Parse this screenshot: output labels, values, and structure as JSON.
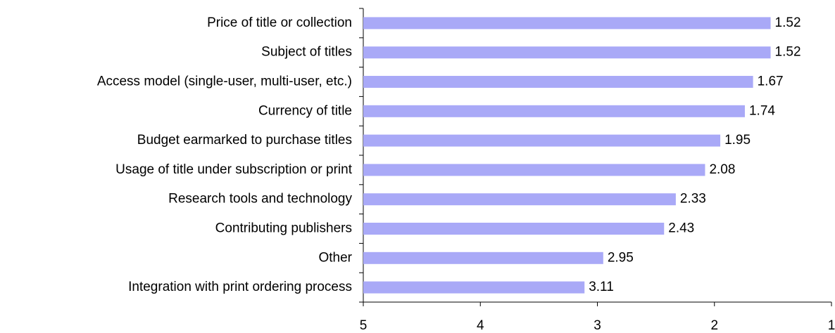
{
  "chart_data": {
    "type": "hbar",
    "categories": [
      "Price of title or collection",
      "Subject of titles",
      "Access model (single-user, multi-user, etc.)",
      "Currency of title",
      "Budget earmarked to purchase titles",
      "Usage of title under subscription or print",
      "Research tools and technology",
      "Contributing publishers",
      "Other",
      "Integration with print ordering process"
    ],
    "values": [
      1.52,
      1.52,
      1.67,
      1.74,
      1.95,
      2.08,
      2.33,
      2.43,
      2.95,
      3.11
    ],
    "color": "#a9a9f7",
    "xlim": [
      5,
      1
    ],
    "xticks": [
      5,
      4,
      3,
      2,
      1
    ]
  }
}
